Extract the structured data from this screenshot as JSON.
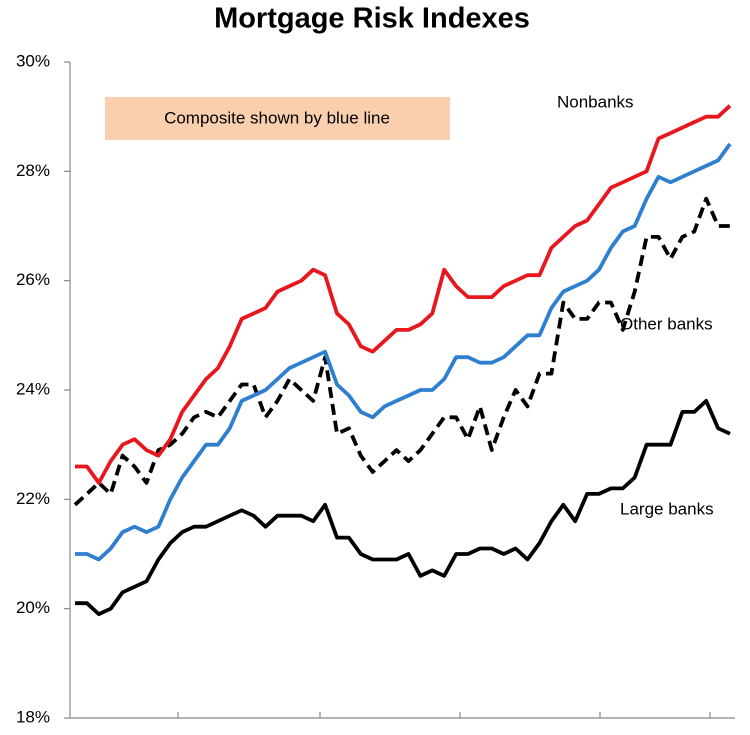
{
  "chart_data": {
    "type": "line",
    "title": "Mortgage Risk Indexes",
    "annotation": "Composite shown by blue line",
    "ylim": [
      18,
      30
    ],
    "yticks": [
      {
        "value": 18,
        "label": "18%"
      },
      {
        "value": 20,
        "label": "20%"
      },
      {
        "value": 22,
        "label": "22%"
      },
      {
        "value": 24,
        "label": "24%"
      },
      {
        "value": 26,
        "label": "26%"
      },
      {
        "value": 28,
        "label": "28%"
      },
      {
        "value": 30,
        "label": "30%"
      }
    ],
    "series": [
      {
        "name": "Nonbanks",
        "color": "#e8161d",
        "values": [
          22.6,
          22.6,
          22.3,
          22.7,
          23.0,
          23.1,
          22.9,
          22.8,
          23.1,
          23.6,
          23.9,
          24.2,
          24.4,
          24.8,
          25.3,
          25.4,
          25.5,
          25.8,
          25.9,
          26.0,
          26.2,
          26.1,
          25.4,
          25.2,
          24.8,
          24.7,
          24.9,
          25.1,
          25.1,
          25.2,
          25.4,
          26.2,
          25.9,
          25.7,
          25.7,
          25.7,
          25.9,
          26.0,
          26.1,
          26.1,
          26.6,
          26.8,
          27.0,
          27.1,
          27.4,
          27.7,
          27.8,
          27.9,
          28.0,
          28.6,
          28.7,
          28.8,
          28.9,
          29.0,
          29.0,
          29.2
        ]
      },
      {
        "color": "#2f7fd0",
        "values": [
          21.0,
          21.0,
          20.9,
          21.1,
          21.4,
          21.5,
          21.4,
          21.5,
          22.0,
          22.4,
          22.7,
          23.0,
          23.0,
          23.3,
          23.8,
          23.9,
          24.0,
          24.2,
          24.4,
          24.5,
          24.6,
          24.7,
          24.1,
          23.9,
          23.6,
          23.5,
          23.7,
          23.8,
          23.9,
          24.0,
          24.0,
          24.2,
          24.6,
          24.6,
          24.5,
          24.5,
          24.6,
          24.8,
          25.0,
          25.0,
          25.5,
          25.8,
          25.9,
          26.0,
          26.2,
          26.6,
          26.9,
          27.0,
          27.5,
          27.9,
          27.8,
          27.9,
          28.0,
          28.1,
          28.2,
          28.5
        ]
      },
      {
        "name": "Other banks",
        "color": "#000000",
        "dashed": true,
        "values": [
          21.9,
          22.1,
          22.3,
          22.1,
          22.8,
          22.6,
          22.3,
          22.9,
          23.0,
          23.2,
          23.5,
          23.6,
          23.5,
          23.8,
          24.1,
          24.1,
          23.5,
          23.8,
          24.2,
          24.0,
          23.8,
          24.6,
          23.2,
          23.3,
          22.8,
          22.5,
          22.7,
          22.9,
          22.7,
          22.9,
          23.2,
          23.5,
          23.5,
          23.1,
          23.7,
          22.9,
          23.5,
          24.0,
          23.7,
          24.3,
          24.3,
          25.6,
          25.3,
          25.3,
          25.6,
          25.6,
          25.1,
          25.8,
          26.8,
          26.8,
          26.4,
          26.8,
          26.9,
          27.5,
          27.0,
          27.0
        ]
      },
      {
        "name": "Large banks",
        "color": "#000000",
        "values": [
          20.1,
          20.1,
          19.9,
          20.0,
          20.3,
          20.4,
          20.5,
          20.9,
          21.2,
          21.4,
          21.5,
          21.5,
          21.6,
          21.7,
          21.8,
          21.7,
          21.5,
          21.7,
          21.7,
          21.7,
          21.6,
          21.9,
          21.3,
          21.3,
          21.0,
          20.9,
          20.9,
          20.9,
          21.0,
          20.6,
          20.7,
          20.6,
          21.0,
          21.0,
          21.1,
          21.1,
          21.0,
          21.1,
          20.9,
          21.2,
          21.6,
          21.9,
          21.6,
          22.1,
          22.1,
          22.2,
          22.2,
          22.4,
          23.0,
          23.0,
          23.0,
          23.6,
          23.6,
          23.8,
          23.3,
          23.2
        ]
      }
    ]
  }
}
